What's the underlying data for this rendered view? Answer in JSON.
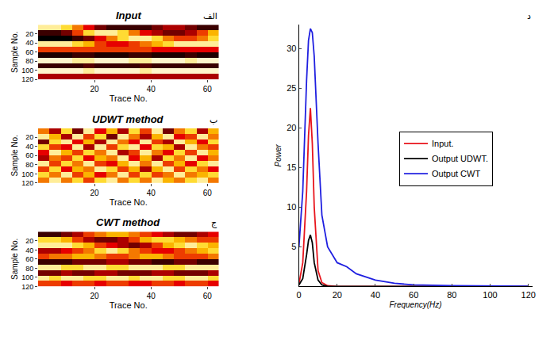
{
  "chart_data": [
    {
      "type": "heatmap",
      "title": "Input",
      "annotation": "الف",
      "x_label": "Trace No.",
      "y_label": "Sample No.",
      "x": [
        2,
        6,
        10,
        14,
        18,
        22,
        26,
        30,
        34,
        38,
        42,
        46,
        50,
        54,
        58,
        62
      ],
      "y": [
        6,
        18,
        30,
        42,
        54,
        66,
        78,
        90,
        102,
        114
      ],
      "cells": [
        [
          0.9,
          0.9,
          0.8,
          0.6,
          0.4,
          0.2,
          0.1,
          0.1,
          0.1,
          0.1,
          0.2,
          0.3,
          0.3,
          0.2,
          0.1,
          0.1
        ],
        [
          0.1,
          0.1,
          0.2,
          0.5,
          0.8,
          0.9,
          0.9,
          0.8,
          0.6,
          0.4,
          0.3,
          0.2,
          0.2,
          0.3,
          0.5,
          0.7
        ],
        [
          0.0,
          0.0,
          0.0,
          0.1,
          0.2,
          0.4,
          0.6,
          0.8,
          0.9,
          0.9,
          0.8,
          0.6,
          0.5,
          0.5,
          0.6,
          0.8
        ],
        [
          0.9,
          0.9,
          0.9,
          0.8,
          0.7,
          0.5,
          0.4,
          0.4,
          0.5,
          0.6,
          0.7,
          0.8,
          0.9,
          0.9,
          0.9,
          0.9
        ],
        [
          0.5,
          0.5,
          0.5,
          0.5,
          0.5,
          0.5,
          0.5,
          0.5,
          0.5,
          0.5,
          0.4,
          0.4,
          0.4,
          0.4,
          0.4,
          0.4
        ],
        [
          0.05,
          0.05,
          0.05,
          0.1,
          0.1,
          0.05,
          0.05,
          0.05,
          0.1,
          0.1,
          0.05,
          0.05,
          0.05,
          0.1,
          0.05,
          0.05
        ],
        [
          0.95,
          0.95,
          0.95,
          0.9,
          0.9,
          0.95,
          0.95,
          0.95,
          0.9,
          0.9,
          0.95,
          0.95,
          0.95,
          0.9,
          0.95,
          0.95
        ],
        [
          0.1,
          0.1,
          0.1,
          0.1,
          0.15,
          0.1,
          0.1,
          0.1,
          0.1,
          0.15,
          0.1,
          0.1,
          0.1,
          0.1,
          0.1,
          0.1
        ],
        [
          0.95,
          0.95,
          0.95,
          0.95,
          0.9,
          0.95,
          0.95,
          0.95,
          0.95,
          0.9,
          0.95,
          0.95,
          0.95,
          0.95,
          0.95,
          0.95
        ],
        [
          0.3,
          0.3,
          0.3,
          0.3,
          0.3,
          0.3,
          0.3,
          0.3,
          0.3,
          0.3,
          0.3,
          0.3,
          0.3,
          0.3,
          0.3,
          0.3
        ]
      ],
      "zlim": [
        0,
        1
      ],
      "color": "hot",
      "xlim": [
        0,
        64
      ],
      "xticks": [
        20,
        40,
        60
      ],
      "ylim": [
        120,
        0
      ],
      "yticks": [
        20,
        40,
        60,
        80,
        100,
        120
      ]
    },
    {
      "type": "heatmap",
      "title": "UDWT method",
      "annotation": "ب",
      "x_label": "Trace No.",
      "y_label": "Sample No.",
      "x": [
        2,
        6,
        10,
        14,
        18,
        22,
        26,
        30,
        34,
        38,
        42,
        46,
        50,
        54,
        58,
        62
      ],
      "y": [
        6,
        18,
        30,
        42,
        54,
        66,
        78,
        90,
        102,
        114
      ],
      "cells": [
        [
          0.6,
          0.3,
          0.8,
          0.2,
          0.9,
          0.4,
          0.7,
          0.3,
          0.8,
          0.5,
          0.9,
          0.2,
          0.6,
          0.8,
          0.3,
          0.7
        ],
        [
          0.9,
          0.7,
          0.3,
          0.9,
          0.5,
          0.8,
          0.2,
          0.9,
          0.6,
          0.3,
          0.7,
          0.9,
          0.4,
          0.5,
          0.9,
          0.6
        ],
        [
          0.2,
          0.8,
          0.9,
          0.4,
          0.7,
          0.3,
          0.9,
          0.6,
          0.4,
          0.9,
          0.5,
          0.3,
          0.9,
          0.7,
          0.4,
          0.8
        ],
        [
          0.8,
          0.5,
          0.4,
          0.9,
          0.3,
          0.9,
          0.5,
          0.8,
          0.9,
          0.4,
          0.8,
          0.7,
          0.3,
          0.9,
          0.6,
          0.5
        ],
        [
          0.4,
          0.9,
          0.7,
          0.5,
          0.8,
          0.6,
          0.9,
          0.3,
          0.5,
          0.9,
          0.6,
          0.4,
          0.8,
          0.5,
          0.9,
          0.7
        ],
        [
          0.3,
          0.6,
          0.5,
          0.8,
          0.4,
          0.7,
          0.6,
          0.9,
          0.4,
          0.7,
          0.3,
          0.8,
          0.6,
          0.9,
          0.4,
          0.6
        ],
        [
          0.9,
          0.5,
          0.8,
          0.6,
          0.9,
          0.5,
          0.4,
          0.7,
          0.9,
          0.6,
          0.9,
          0.5,
          0.7,
          0.4,
          0.8,
          0.9
        ],
        [
          0.5,
          0.8,
          0.4,
          0.7,
          0.6,
          0.9,
          0.8,
          0.5,
          0.7,
          0.3,
          0.7,
          0.9,
          0.5,
          0.8,
          0.6,
          0.4
        ],
        [
          0.8,
          0.6,
          0.9,
          0.5,
          0.7,
          0.4,
          0.6,
          0.9,
          0.5,
          0.8,
          0.5,
          0.6,
          0.9,
          0.6,
          0.7,
          0.8
        ],
        [
          0.6,
          0.9,
          0.6,
          0.8,
          0.5,
          0.8,
          0.9,
          0.6,
          0.8,
          0.6,
          0.9,
          0.7,
          0.6,
          0.8,
          0.9,
          0.6
        ]
      ],
      "zlim": [
        0,
        1
      ],
      "color": "hot",
      "xlim": [
        0,
        64
      ],
      "xticks": [
        20,
        40,
        60
      ],
      "ylim": [
        120,
        0
      ],
      "yticks": [
        20,
        40,
        60,
        80,
        100,
        120
      ]
    },
    {
      "type": "heatmap",
      "title": "CWT method",
      "annotation": "ج",
      "x_label": "Trace No.",
      "y_label": "Sample No.",
      "x": [
        2,
        6,
        10,
        14,
        18,
        22,
        26,
        30,
        34,
        38,
        42,
        46,
        50,
        54,
        58,
        62
      ],
      "y": [
        6,
        18,
        30,
        42,
        54,
        66,
        78,
        90,
        102,
        114
      ],
      "cells": [
        [
          0.1,
          0.1,
          0.2,
          0.3,
          0.5,
          0.6,
          0.7,
          0.7,
          0.6,
          0.5,
          0.4,
          0.3,
          0.2,
          0.2,
          0.3,
          0.4
        ],
        [
          0.8,
          0.8,
          0.7,
          0.5,
          0.3,
          0.2,
          0.2,
          0.3,
          0.5,
          0.7,
          0.8,
          0.8,
          0.7,
          0.6,
          0.5,
          0.5
        ],
        [
          0.9,
          0.9,
          0.9,
          0.8,
          0.7,
          0.5,
          0.4,
          0.3,
          0.2,
          0.3,
          0.5,
          0.7,
          0.8,
          0.9,
          0.8,
          0.7
        ],
        [
          0.3,
          0.3,
          0.4,
          0.5,
          0.6,
          0.8,
          0.9,
          0.8,
          0.6,
          0.5,
          0.4,
          0.4,
          0.5,
          0.6,
          0.7,
          0.8
        ],
        [
          0.5,
          0.6,
          0.6,
          0.7,
          0.7,
          0.6,
          0.5,
          0.5,
          0.6,
          0.7,
          0.7,
          0.6,
          0.5,
          0.5,
          0.5,
          0.6
        ],
        [
          0.1,
          0.1,
          0.1,
          0.2,
          0.2,
          0.2,
          0.3,
          0.3,
          0.2,
          0.2,
          0.1,
          0.1,
          0.2,
          0.2,
          0.1,
          0.1
        ],
        [
          0.9,
          0.9,
          0.8,
          0.8,
          0.9,
          0.9,
          0.8,
          0.8,
          0.9,
          0.9,
          0.9,
          0.8,
          0.8,
          0.9,
          0.9,
          0.9
        ],
        [
          0.2,
          0.2,
          0.3,
          0.2,
          0.2,
          0.3,
          0.3,
          0.2,
          0.2,
          0.2,
          0.3,
          0.3,
          0.2,
          0.2,
          0.2,
          0.3
        ],
        [
          0.9,
          0.8,
          0.9,
          0.9,
          0.8,
          0.8,
          0.9,
          0.9,
          0.8,
          0.9,
          0.9,
          0.8,
          0.8,
          0.9,
          0.9,
          0.8
        ],
        [
          0.5,
          0.5,
          0.4,
          0.5,
          0.5,
          0.4,
          0.5,
          0.5,
          0.4,
          0.4,
          0.5,
          0.5,
          0.4,
          0.5,
          0.5,
          0.4
        ]
      ],
      "zlim": [
        0,
        1
      ],
      "color": "hot",
      "xlim": [
        0,
        64
      ],
      "xticks": [
        20,
        40,
        60
      ],
      "ylim": [
        120,
        0
      ],
      "yticks": [
        20,
        40,
        60,
        80,
        100,
        120
      ]
    },
    {
      "type": "line",
      "annotation": "د",
      "x_label": "Frequency(Hz)",
      "y_label": "Power",
      "x": [
        0,
        2,
        4,
        5,
        6,
        7,
        8,
        10,
        12,
        15,
        20,
        22,
        25,
        30,
        35,
        40,
        50,
        60,
        80,
        100,
        120
      ],
      "series": [
        {
          "name": "Input.",
          "color": "#e8141c",
          "values": [
            0.3,
            3,
            12,
            19,
            22.5,
            18,
            10,
            2,
            0.5,
            0.1,
            0,
            0,
            0,
            0,
            0,
            0,
            0,
            0,
            0,
            0,
            0
          ]
        },
        {
          "name": "Output UDWT.",
          "color": "#000000",
          "values": [
            0.2,
            1,
            4,
            5.8,
            6.5,
            5.5,
            3,
            0.8,
            0.2,
            0,
            0,
            0,
            0,
            0,
            0,
            0,
            0,
            0,
            0,
            0,
            0
          ]
        },
        {
          "name": "Output CWT",
          "color": "#1f1fe0",
          "values": [
            5,
            12,
            26,
            31,
            32.5,
            32,
            29,
            18,
            9,
            5,
            3,
            2.8,
            2.5,
            1.6,
            1.2,
            0.8,
            0.4,
            0.2,
            0.1,
            0.05,
            0.02
          ]
        }
      ],
      "xlim": [
        0,
        122
      ],
      "xticks": [
        0,
        20,
        40,
        60,
        80,
        100,
        120
      ],
      "ylim": [
        0,
        33
      ],
      "yticks": [
        5,
        10,
        15,
        20,
        25,
        30
      ],
      "legend": "right",
      "grid": false
    }
  ]
}
